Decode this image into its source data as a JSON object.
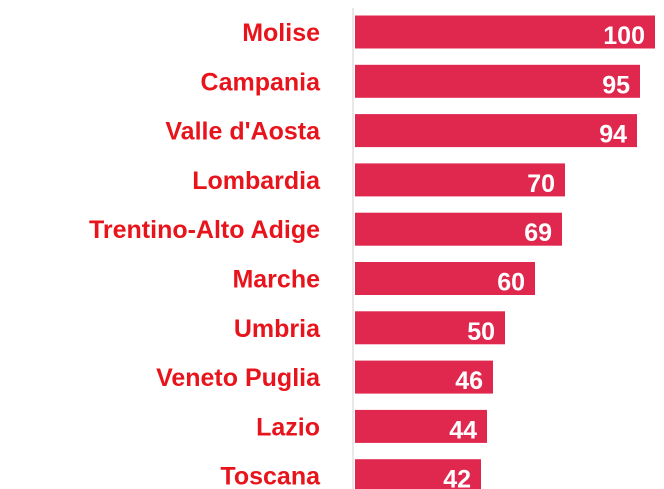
{
  "chart_data": {
    "type": "hbar",
    "categories": [
      "Molise",
      "Campania",
      "Valle d'Aosta",
      "Lombardia",
      "Trentino-Alto Adige",
      "Marche",
      "Umbria",
      "Veneto Puglia",
      "Lazio",
      "Toscana"
    ],
    "values": [
      100,
      95,
      94,
      70,
      69,
      60,
      50,
      46,
      44,
      42
    ],
    "color": "#e0284f",
    "label_color": "#e8141c",
    "xlim": [
      0,
      100
    ]
  }
}
